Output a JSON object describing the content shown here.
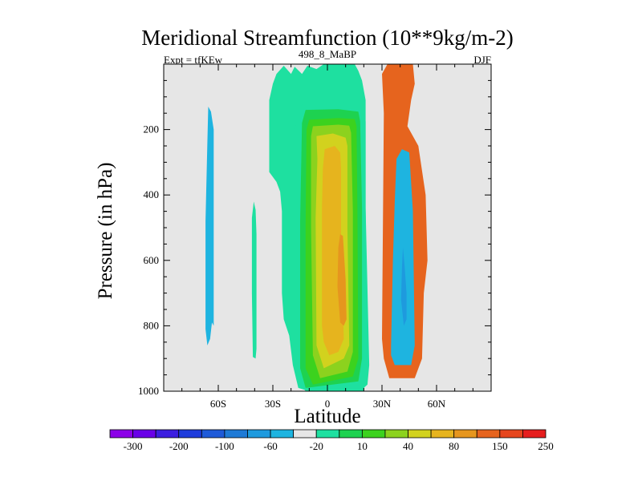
{
  "chart_data": {
    "type": "heatmap",
    "title": "Meridional Streamfunction (10**9kg/m-2)",
    "left_string": "Expt = tfKEw",
    "center_string": "498_8_MaBP",
    "right_string": "DJF",
    "xlabel": "Latitude",
    "ylabel": "Pressure (in hPa)",
    "xlim": [
      -90,
      90
    ],
    "ylim": [
      0,
      1000
    ],
    "y_inverted": true,
    "x_ticks": [
      {
        "value": -60,
        "label": "60S"
      },
      {
        "value": -30,
        "label": "30S"
      },
      {
        "value": 0,
        "label": "0"
      },
      {
        "value": 30,
        "label": "30N"
      },
      {
        "value": 60,
        "label": "60N"
      }
    ],
    "y_ticks": [
      {
        "value": 200,
        "label": "200"
      },
      {
        "value": 400,
        "label": "400"
      },
      {
        "value": 600,
        "label": "600"
      },
      {
        "value": 800,
        "label": "800"
      },
      {
        "value": 1000,
        "label": "1000"
      }
    ],
    "background_color": "#e6e6e6",
    "colorbar": {
      "colors": [
        "#8c00e8",
        "#6a00e8",
        "#3c1ee0",
        "#1e3cdc",
        "#1e5ad8",
        "#1e7ad6",
        "#1e9ade",
        "#1eb4e0",
        "#e6e6e6",
        "#1ee0a0",
        "#1ed250",
        "#3cd21e",
        "#8cd21e",
        "#d2d21e",
        "#e6b41e",
        "#e6961e",
        "#e6641e",
        "#e6461e",
        "#e61e1e"
      ],
      "labels": [
        "-300",
        "-200",
        "-100",
        "-60",
        "-20",
        "10",
        "40",
        "80",
        "150",
        "250"
      ]
    },
    "contour_regions": [
      {
        "level": "-10 to -20",
        "color": "#1eb4e0",
        "center_lat": -64,
        "pressure_range": [
          130,
          860
        ]
      },
      {
        "level": "10 to 20",
        "color": "#1ee0a0",
        "center_lat": -40,
        "pressure_range": [
          420,
          900
        ]
      },
      {
        "level": "10 to 20",
        "color": "#1ee0a0",
        "center_lat": -28,
        "pressure_range": [
          10,
          460
        ]
      },
      {
        "level": "10 to 20",
        "color": "#1ee0a0",
        "center_lat": 5,
        "pressure_range": [
          0,
          1000
        ]
      },
      {
        "level": "20 to 40",
        "color": "#1ed250",
        "center_lat": 6,
        "pressure_range": [
          120,
          1000
        ]
      },
      {
        "level": "40 to 60",
        "color": "#3cd21e",
        "center_lat": 6,
        "pressure_range": [
          140,
          990
        ]
      },
      {
        "level": "60 to 80",
        "color": "#8cd21e",
        "center_lat": 6,
        "pressure_range": [
          170,
          980
        ]
      },
      {
        "level": "80 to 100",
        "color": "#d2d21e",
        "center_lat": 6,
        "pressure_range": [
          190,
          960
        ]
      },
      {
        "level": "100 to 150",
        "color": "#e6b41e",
        "center_lat": 6,
        "pressure_range": [
          220,
          930
        ]
      },
      {
        "level": "150 to 200",
        "color": "#e6961e",
        "center_lat": 6,
        "pressure_range": [
          260,
          880
        ]
      },
      {
        "level": "200 to 250",
        "color": "#e6641e",
        "center_lat": 8,
        "pressure_range": [
          520,
          800
        ]
      },
      {
        "level": "-10 to -20",
        "color": "#1eb4e0",
        "center_lat": 42,
        "pressure_range": [
          0,
          950
        ]
      },
      {
        "level": "-20 to -40",
        "color": "#1e9ade",
        "center_lat": 42,
        "pressure_range": [
          260,
          920
        ]
      },
      {
        "level": "-40 to -60",
        "color": "#1e7ad6",
        "center_lat": 43,
        "pressure_range": [
          560,
          800
        ]
      }
    ]
  }
}
